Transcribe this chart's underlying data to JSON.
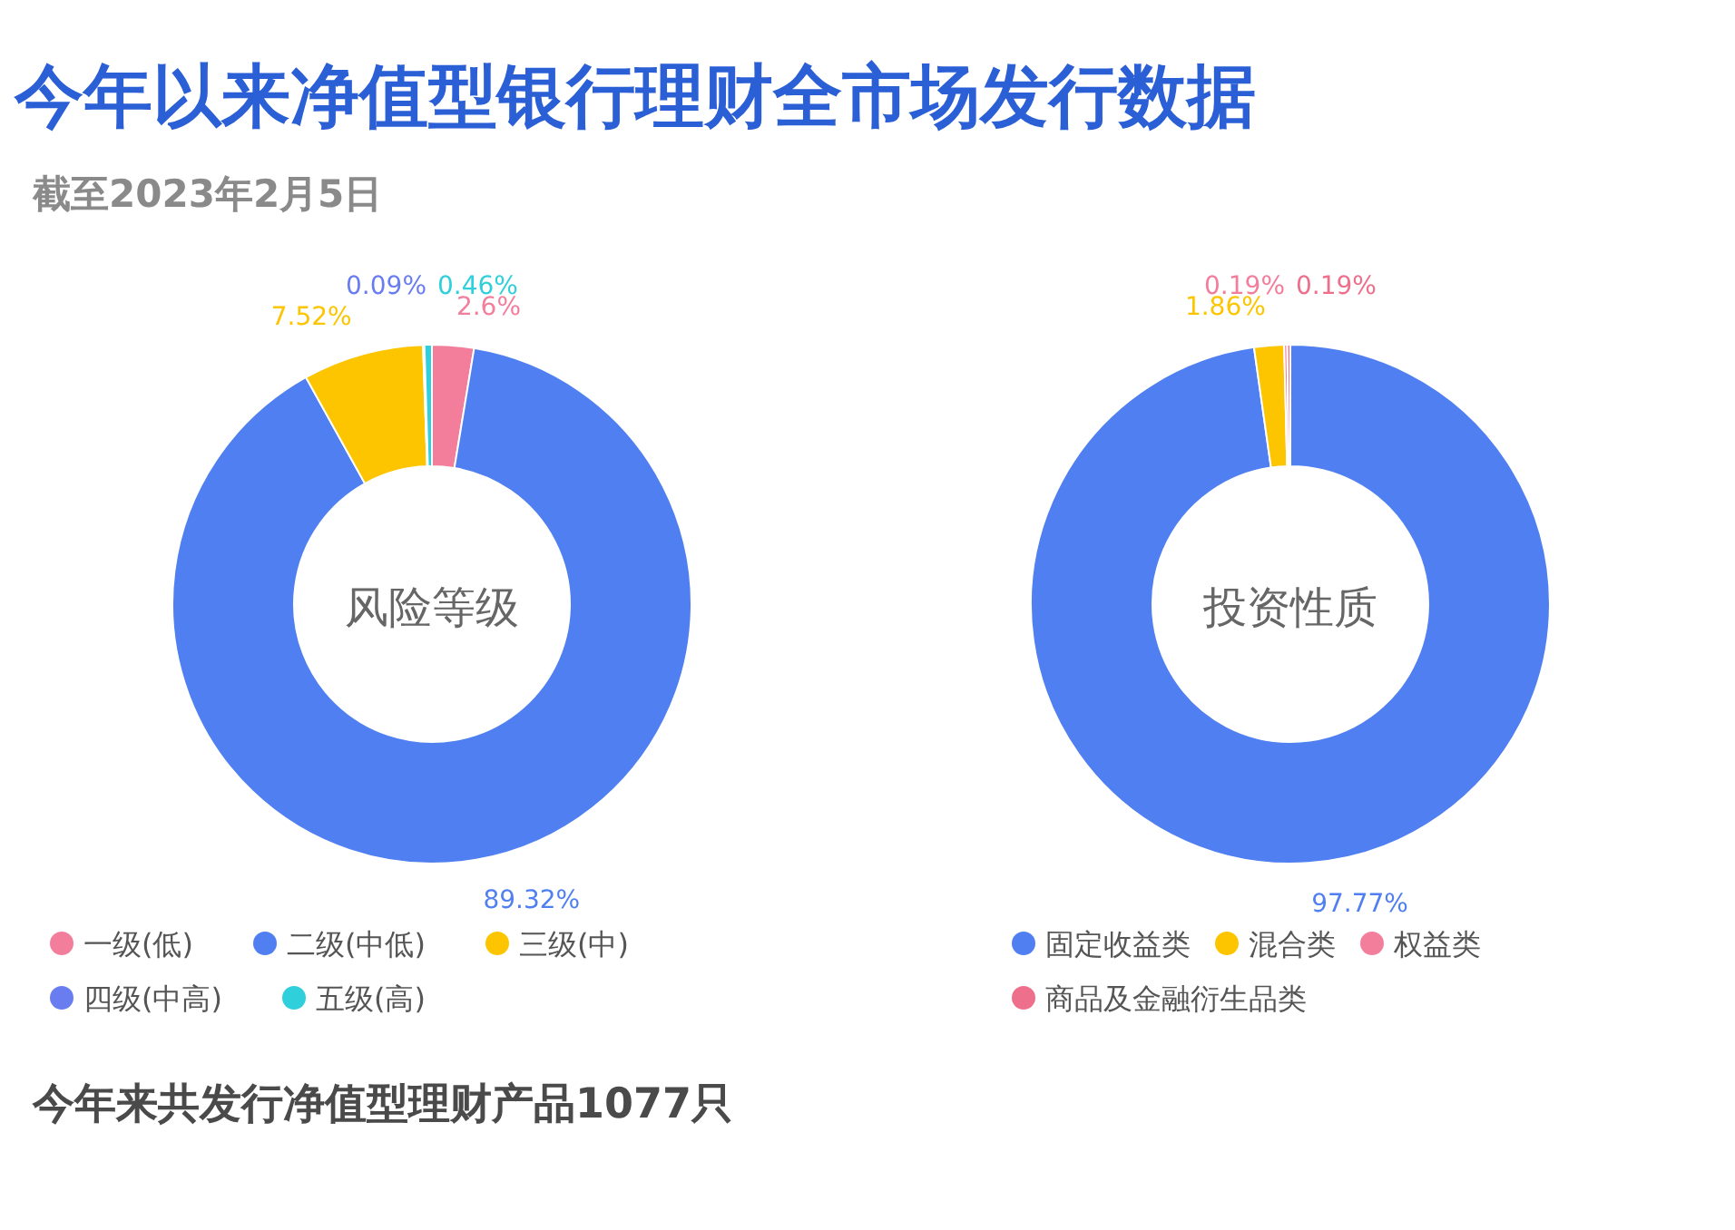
{
  "chart_data": [
    {
      "type": "other",
      "title": "今年以来净值型银行理财全市场发行数据",
      "subtitle": "截至2023年2月5日",
      "annotations": [
        "今年来共发行净值型理财产品1077只"
      ]
    },
    {
      "type": "donut",
      "title": "风险等级",
      "legend": "bottom",
      "categories": [
        "一级(低)",
        "二级(中低)",
        "三级(中)",
        "四级(中高)",
        "五级(高)"
      ],
      "values": [
        2.6,
        89.32,
        7.52,
        0.09,
        0.46
      ],
      "value_labels": [
        "2.6%",
        "89.32%",
        "7.52%",
        "0.09%",
        "0.46%"
      ],
      "colors": [
        "#f27e9c",
        "#4f7ff0",
        "#fcc500",
        "#6a7df0",
        "#2fcfdc"
      ]
    },
    {
      "type": "donut",
      "title": "投资性质",
      "legend": "bottom",
      "categories": [
        "固定收益类",
        "混合类",
        "权益类",
        "商品及金融衍生品类"
      ],
      "values": [
        97.77,
        1.86,
        0.19,
        0.19
      ],
      "value_labels": [
        "97.77%",
        "1.86%",
        "0.19%",
        "0.19%"
      ],
      "colors": [
        "#4f7ff0",
        "#fcc500",
        "#f27e9c",
        "#ee6f8c"
      ]
    }
  ]
}
